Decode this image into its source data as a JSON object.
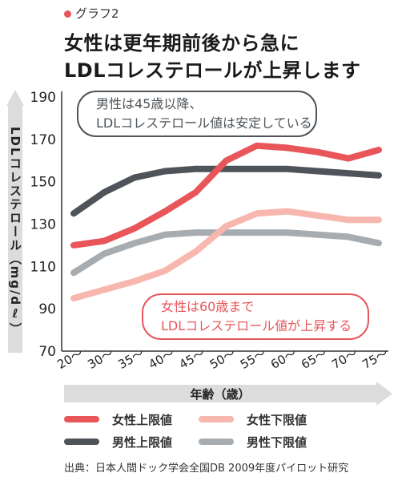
{
  "tag": "グラフ2",
  "headline": [
    "女性は更年期前後から急に",
    "LDLコレステロールが上昇します"
  ],
  "callouts": {
    "male": [
      "男性は45歳以降、",
      "LDLコレステロール値は安定している"
    ],
    "female": [
      "女性は60歳まで",
      "LDLコレステロール値が上昇する"
    ]
  },
  "source": "出典：日本人間ドック学会全国DB 2009年度パイロット研究",
  "chart_data": {
    "type": "line",
    "categories": [
      "20〜",
      "30〜",
      "35〜",
      "40〜",
      "45〜",
      "50〜",
      "55〜",
      "60〜",
      "65〜",
      "70〜",
      "75〜"
    ],
    "ylabel": "LDLコレステロール（mg/dℓ）",
    "xlabel": "年齢（歳）",
    "ylim": [
      70,
      190
    ],
    "yticks": [
      70,
      90,
      110,
      130,
      150,
      170,
      190
    ],
    "grid": false,
    "legend_position": "bottom",
    "series": [
      {
        "name": "女性上限値",
        "color": "#e8565a",
        "values": [
          120,
          122,
          128,
          136,
          145,
          160,
          167,
          166,
          164,
          161,
          165
        ]
      },
      {
        "name": "女性下限値",
        "color": "#f8b7ae",
        "values": [
          95,
          99,
          103,
          108,
          117,
          129,
          135,
          136,
          134,
          132,
          132
        ]
      },
      {
        "name": "男性上限値",
        "color": "#4e5459",
        "values": [
          135,
          145,
          152,
          155,
          156,
          156,
          156,
          156,
          155,
          154,
          153
        ]
      },
      {
        "name": "男性下限値",
        "color": "#a6acb0",
        "values": [
          107,
          116,
          121,
          125,
          126,
          126,
          126,
          126,
          125,
          124,
          121
        ]
      }
    ]
  }
}
